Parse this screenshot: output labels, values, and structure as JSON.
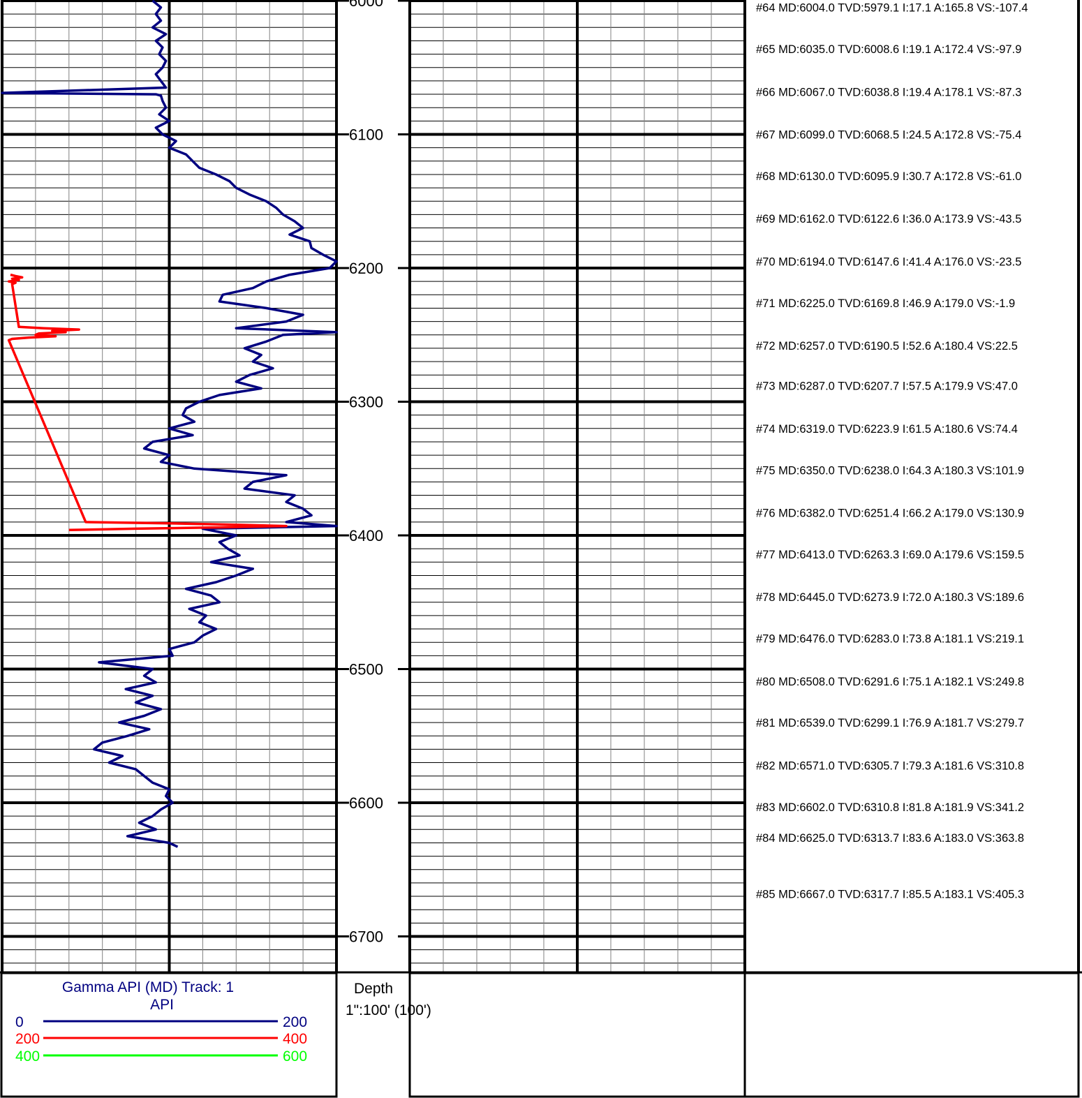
{
  "log": {
    "depth_range": [
      6000,
      6730
    ],
    "depth_labels": [
      "6000",
      "6100",
      "6200",
      "6300",
      "6400",
      "6500",
      "6600",
      "6700"
    ]
  },
  "legend": {
    "title": "Gamma API (MD) Track: 1",
    "unit": "API",
    "scales": [
      {
        "min": "0",
        "max": "200",
        "color": "#000080"
      },
      {
        "min": "200",
        "max": "400",
        "color": "#ff0000"
      },
      {
        "min": "400",
        "max": "600",
        "color": "#00ff00"
      }
    ]
  },
  "depth_track": {
    "title": "Depth",
    "scale": "1\":100' (100')"
  },
  "colors": {
    "gamma": "#000080",
    "gamma_wrap": "#ff0000",
    "grid": "#000000",
    "grid_fine": "#808080"
  },
  "survey_annotations": [
    "#64 MD:6004.0 TVD:5979.1 I:17.1 A:165.8 VS:-107.4",
    "#65 MD:6035.0 TVD:6008.6 I:19.1 A:172.4 VS:-97.9",
    "#66 MD:6067.0 TVD:6038.8 I:19.4 A:178.1 VS:-87.3",
    "#67 MD:6099.0 TVD:6068.5 I:24.5 A:172.8 VS:-75.4",
    "#68 MD:6130.0 TVD:6095.9 I:30.7 A:172.8 VS:-61.0",
    "#69 MD:6162.0 TVD:6122.6 I:36.0 A:173.9 VS:-43.5",
    "#70 MD:6194.0 TVD:6147.6 I:41.4 A:176.0 VS:-23.5",
    "#71 MD:6225.0 TVD:6169.8 I:46.9 A:179.0 VS:-1.9",
    "#72 MD:6257.0 TVD:6190.5 I:52.6 A:180.4 VS:22.5",
    "#73 MD:6287.0 TVD:6207.7 I:57.5 A:179.9 VS:47.0",
    "#74 MD:6319.0 TVD:6223.9 I:61.5 A:180.6 VS:74.4",
    "#75 MD:6350.0 TVD:6238.0 I:64.3 A:180.3 VS:101.9",
    "#76 MD:6382.0 TVD:6251.4 I:66.2 A:179.0 VS:130.9",
    "#77 MD:6413.0 TVD:6263.3 I:69.0 A:179.6 VS:159.5",
    "#78 MD:6445.0 TVD:6273.9 I:72.0 A:180.3 VS:189.6",
    "#79 MD:6476.0 TVD:6283.0 I:73.8 A:181.1 VS:219.1",
    "#80 MD:6508.0 TVD:6291.6 I:75.1 A:182.1 VS:249.8",
    "#81 MD:6539.0 TVD:6299.1 I:76.9 A:181.7 VS:279.7",
    "#82 MD:6571.0 TVD:6305.7 I:79.3 A:181.6 VS:310.8",
    "#83 MD:6602.0 TVD:6310.8 I:81.8 A:181.9 VS:341.2",
    "#84 MD:6625.0 TVD:6313.7 I:83.6 A:183.0 VS:363.8",
    "#85 MD:6667.0 TVD:6317.7 I:85.5 A:183.1 VS:405.3"
  ],
  "chart_data": {
    "type": "line",
    "ylabel": "Depth",
    "ylim": [
      6000,
      6730
    ],
    "xlim": [
      0,
      200
    ],
    "series": [
      {
        "name": "Gamma API (MD)",
        "unit": "API",
        "color": "#000080",
        "depth": [
          6000,
          6005,
          6010,
          6015,
          6020,
          6025,
          6030,
          6035,
          6040,
          6045,
          6050,
          6055,
          6060,
          6065,
          6069,
          6070,
          6071,
          6075,
          6080,
          6085,
          6090,
          6095,
          6100,
          6105,
          6110,
          6115,
          6120,
          6125,
          6130,
          6135,
          6140,
          6145,
          6150,
          6155,
          6160,
          6165,
          6170,
          6175,
          6180,
          6185,
          6190,
          6195,
          6200,
          6205,
          6210,
          6215,
          6220,
          6225,
          6230,
          6235,
          6240,
          6245,
          6248,
          6250,
          6255,
          6260,
          6265,
          6270,
          6275,
          6280,
          6285,
          6290,
          6295,
          6300,
          6305,
          6310,
          6315,
          6320,
          6325,
          6330,
          6335,
          6340,
          6345,
          6350,
          6355,
          6360,
          6365,
          6370,
          6375,
          6380,
          6385,
          6390,
          6393,
          6395,
          6400,
          6405,
          6410,
          6415,
          6420,
          6425,
          6430,
          6435,
          6440,
          6445,
          6450,
          6455,
          6460,
          6465,
          6470,
          6475,
          6480,
          6485,
          6490,
          6495,
          6500,
          6505,
          6510,
          6515,
          6520,
          6525,
          6530,
          6535,
          6540,
          6545,
          6550,
          6555,
          6560,
          6565,
          6570,
          6575,
          6580,
          6585,
          6590,
          6595,
          6600,
          6605,
          6610,
          6615,
          6620,
          6625,
          6630,
          6633
        ],
        "values": [
          90,
          95,
          92,
          95,
          90,
          98,
          92,
          96,
          94,
          98,
          96,
          92,
          95,
          98,
          0,
          92,
          95,
          96,
          98,
          94,
          100,
          92,
          96,
          104,
          100,
          110,
          114,
          118,
          128,
          136,
          140,
          148,
          158,
          164,
          168,
          175,
          180,
          172,
          184,
          185,
          192,
          200,
          196,
          172,
          158,
          150,
          132,
          130,
          158,
          180,
          170,
          140,
          200,
          168,
          158,
          145,
          155,
          150,
          162,
          148,
          140,
          155,
          130,
          118,
          110,
          108,
          115,
          100,
          114,
          90,
          85,
          100,
          95,
          115,
          170,
          150,
          145,
          175,
          170,
          180,
          185,
          170,
          200,
          120,
          140,
          130,
          135,
          142,
          125,
          150,
          140,
          128,
          110,
          125,
          130,
          112,
          122,
          118,
          128,
          120,
          115,
          100,
          102,
          58,
          90,
          85,
          92,
          74,
          90,
          80,
          95,
          85,
          70,
          88,
          75,
          60,
          55,
          72,
          64,
          80,
          85,
          90,
          100,
          98,
          102,
          95,
          90,
          82,
          92,
          75,
          100,
          105
        ]
      },
      {
        "name": "Gamma API (MD) 200-400",
        "unit": "API",
        "color": "#ff0000",
        "depth": [
          6205,
          6206,
          6207,
          6208,
          6209,
          6210,
          6211,
          6212,
          6244,
          6245,
          6246,
          6247,
          6248,
          6249,
          6250,
          6251,
          6252,
          6253,
          6254,
          6390,
          6391,
          6392,
          6393,
          6394,
          6395,
          6396
        ],
        "values": [
          205,
          208,
          212,
          206,
          210,
          204,
          208,
          206,
          210,
          225,
          246,
          230,
          238,
          222,
          220,
          232,
          216,
          206,
          204,
          250,
          300,
          340,
          370,
          330,
          280,
          240
        ]
      }
    ]
  }
}
